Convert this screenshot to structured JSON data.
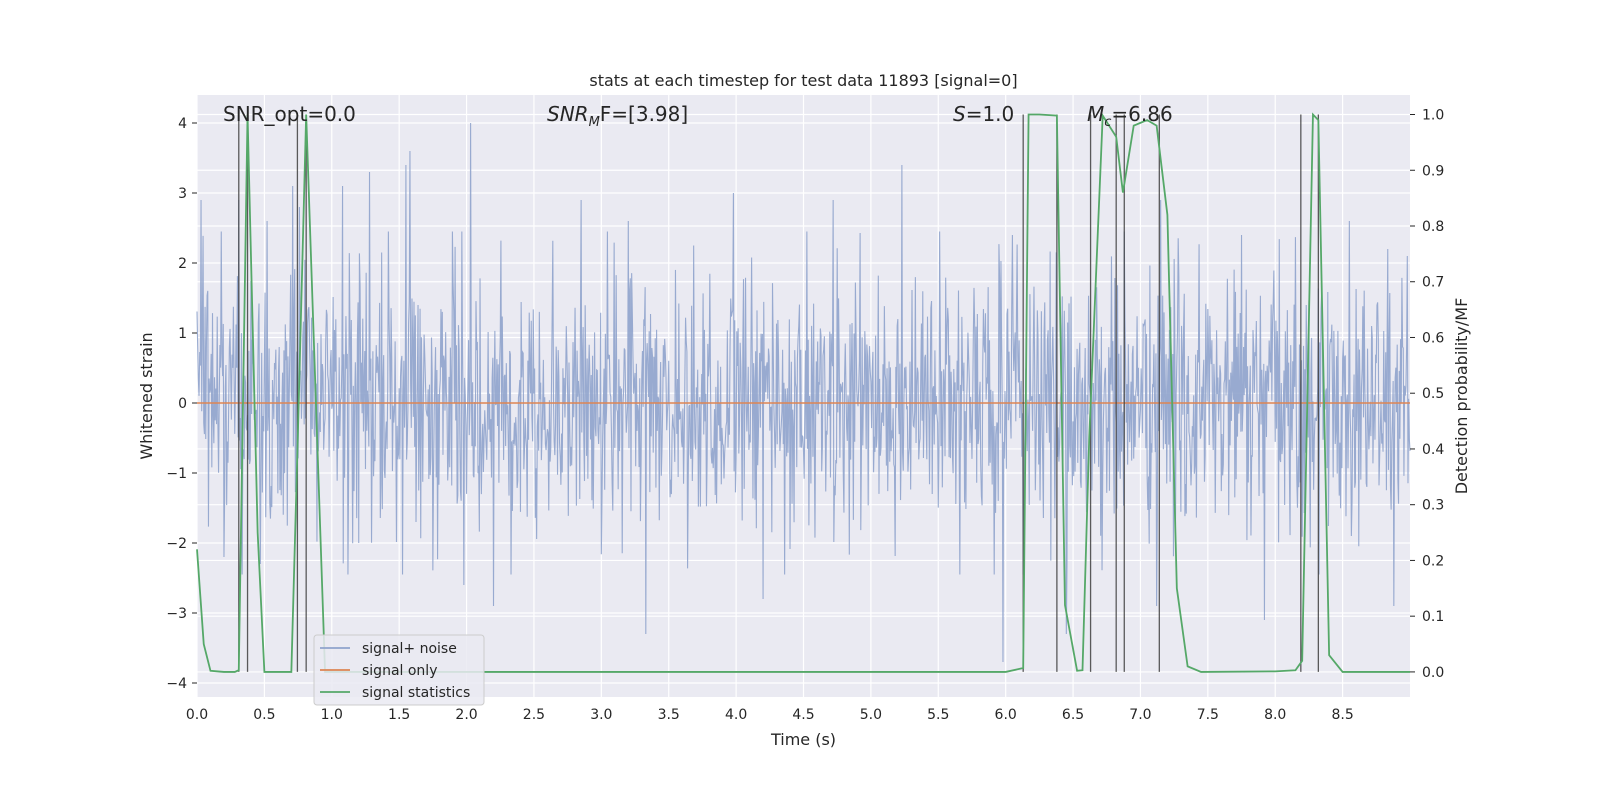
{
  "chart_data": {
    "type": "line",
    "title": "stats at each timestep for test data 11893 [signal=0]",
    "xlabel": "Time (s)",
    "ylabel_left": "Whitened strain",
    "ylabel_right": "Detection probability/MF",
    "xlim": [
      0,
      9.0
    ],
    "ylim_left": [
      -4.2,
      4.4
    ],
    "ylim_right": [
      -0.045,
      1.035
    ],
    "x_ticks": [
      "0.0",
      "0.5",
      "1.0",
      "1.5",
      "2.0",
      "2.5",
      "3.0",
      "3.5",
      "4.0",
      "4.5",
      "5.0",
      "5.5",
      "6.0",
      "6.5",
      "7.0",
      "7.5",
      "8.0",
      "8.5"
    ],
    "y_ticks_left": [
      "4",
      "3",
      "2",
      "1",
      "0",
      "−1",
      "−2",
      "−3",
      "−4"
    ],
    "y_ticks_right": [
      "1.0",
      "0.9",
      "0.8",
      "0.7",
      "0.6",
      "0.5",
      "0.4",
      "0.3",
      "0.2",
      "0.1",
      "0.0"
    ],
    "grid": true,
    "legend_position": "lower-left",
    "annotations": {
      "snr_opt": "SNR_opt=0.0",
      "snr_mf_main": "SNR",
      "snr_mf_sub": "M",
      "snr_mf_rest": "F=[3.98]",
      "s_italic": "S",
      "s_rest": "=1.0",
      "mc_italic": "M",
      "mc_sub": "c",
      "mc_rest": "=6.86"
    },
    "colors": {
      "noise": "#8fa3cc",
      "signal_only": "#dd8452",
      "statistics": "#55a868",
      "vlines": "#404040",
      "background": "#eaeaf2",
      "grid": "#ffffff"
    },
    "series": [
      {
        "name": "signal+ noise",
        "description_values": "whitened noise approx. N(0,1), peaks between -3.7 and 4.0",
        "peaks_high": [
          [
            0.03,
            2.9
          ],
          [
            0.31,
            2.9
          ],
          [
            0.52,
            2.6
          ],
          [
            0.71,
            3.1
          ],
          [
            0.76,
            2.8
          ],
          [
            1.08,
            3.1
          ],
          [
            1.28,
            3.3
          ],
          [
            1.55,
            3.4
          ],
          [
            1.58,
            3.6
          ],
          [
            2.03,
            4.0
          ],
          [
            2.85,
            2.9
          ],
          [
            3.2,
            2.6
          ],
          [
            3.98,
            3.0
          ],
          [
            4.72,
            2.9
          ],
          [
            5.23,
            3.4
          ],
          [
            6.05,
            2.4
          ],
          [
            7.15,
            2.9
          ],
          [
            7.75,
            2.4
          ],
          [
            8.55,
            2.6
          ],
          [
            8.98,
            2.1
          ]
        ],
        "peaks_low": [
          [
            0.2,
            -2.2
          ],
          [
            0.47,
            -2.3
          ],
          [
            1.2,
            -2.0
          ],
          [
            1.98,
            -2.6
          ],
          [
            2.2,
            -2.9
          ],
          [
            3.33,
            -3.3
          ],
          [
            4.2,
            -2.8
          ],
          [
            5.98,
            -3.7
          ],
          [
            6.45,
            -3.3
          ],
          [
            7.12,
            -2.9
          ],
          [
            7.92,
            -3.1
          ],
          [
            8.88,
            -2.9
          ]
        ]
      },
      {
        "name": "signal only",
        "x": [
          0,
          9.0
        ],
        "y": [
          0,
          0
        ]
      },
      {
        "name": "signal statistics",
        "x": [
          0.0,
          0.05,
          0.1,
          0.2,
          0.28,
          0.31,
          0.375,
          0.45,
          0.5,
          0.7,
          0.75,
          0.81,
          0.95,
          1.0,
          6.0,
          6.13,
          6.17,
          6.25,
          6.38,
          6.44,
          6.53,
          6.57,
          6.62,
          6.72,
          6.82,
          6.87,
          6.95,
          7.05,
          7.12,
          7.2,
          7.27,
          7.35,
          7.45,
          8.0,
          8.15,
          8.2,
          8.28,
          8.32,
          8.4,
          8.5,
          9.0
        ],
        "y": [
          0.22,
          0.05,
          0.002,
          0.0,
          0.0,
          0.003,
          1.0,
          0.25,
          0.0,
          0.0,
          0.44,
          1.0,
          0.0,
          0.0,
          0.0,
          0.007,
          1.0,
          1.0,
          0.998,
          0.12,
          0.002,
          0.003,
          0.42,
          0.998,
          0.96,
          0.86,
          0.98,
          0.99,
          0.98,
          0.82,
          0.15,
          0.01,
          0.0,
          0.001,
          0.003,
          0.02,
          1.0,
          0.99,
          0.03,
          0.0,
          0.0
        ]
      }
    ],
    "vlines_x": [
      0.31,
      0.375,
      0.745,
      0.81,
      6.13,
      6.38,
      6.63,
      6.82,
      6.88,
      7.14,
      8.19,
      8.32
    ]
  },
  "legend": {
    "noise": "signal+ noise",
    "signal_only": "signal only",
    "statistics": "signal statistics"
  }
}
